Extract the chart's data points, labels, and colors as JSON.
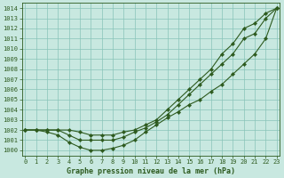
{
  "title": "Graphe pression niveau de la mer (hPa)",
  "bg_color": "#c8e8e0",
  "line_color": "#2d5a1e",
  "grid_color": "#88c4b8",
  "ylim": [
    999.5,
    1014.5
  ],
  "xlim": [
    -0.3,
    23.3
  ],
  "yticks": [
    1000,
    1001,
    1002,
    1003,
    1004,
    1005,
    1006,
    1007,
    1008,
    1009,
    1010,
    1011,
    1012,
    1013,
    1014
  ],
  "xticks": [
    0,
    1,
    2,
    3,
    4,
    5,
    6,
    7,
    8,
    9,
    10,
    11,
    12,
    13,
    14,
    15,
    16,
    17,
    18,
    19,
    20,
    21,
    22,
    23
  ],
  "line1_x": [
    0,
    1,
    2,
    3,
    4,
    5,
    6,
    7,
    8,
    9,
    10,
    11,
    12,
    13,
    14,
    15,
    16,
    17,
    18,
    19,
    20,
    21,
    22,
    23
  ],
  "line1_y": [
    1002,
    1002,
    1001.8,
    1001.5,
    1000.8,
    1000.3,
    1000.0,
    1000.0,
    1000.2,
    1000.5,
    1001.0,
    1001.8,
    1002.5,
    1003.2,
    1003.8,
    1004.5,
    1005.0,
    1005.8,
    1006.5,
    1007.5,
    1008.5,
    1009.5,
    1011.0,
    1014.0
  ],
  "line2_x": [
    0,
    1,
    2,
    3,
    4,
    5,
    6,
    7,
    8,
    9,
    10,
    11,
    12,
    13,
    14,
    15,
    16,
    17,
    18,
    19,
    20,
    21,
    22,
    23
  ],
  "line2_y": [
    1002,
    1002,
    1002,
    1002,
    1001.5,
    1001.0,
    1001.0,
    1001.0,
    1001.0,
    1001.3,
    1001.8,
    1002.2,
    1002.8,
    1003.5,
    1004.5,
    1005.5,
    1006.5,
    1007.5,
    1008.5,
    1009.5,
    1011.0,
    1011.5,
    1013.0,
    1014.0
  ],
  "line3_x": [
    0,
    1,
    2,
    3,
    4,
    5,
    6,
    7,
    8,
    9,
    10,
    11,
    12,
    13,
    14,
    15,
    16,
    17,
    18,
    19,
    20,
    21,
    22,
    23
  ],
  "line3_y": [
    1002,
    1002,
    1002,
    1002,
    1002,
    1001.8,
    1001.5,
    1001.5,
    1001.5,
    1001.8,
    1002.0,
    1002.5,
    1003.0,
    1004.0,
    1005.0,
    1006.0,
    1007.0,
    1008.0,
    1009.5,
    1010.5,
    1012.0,
    1012.5,
    1013.5,
    1014.0
  ],
  "ylabel_fontsize": 5,
  "xlabel_fontsize": 5,
  "title_fontsize": 6,
  "marker_size": 2.2,
  "line_width": 0.8
}
